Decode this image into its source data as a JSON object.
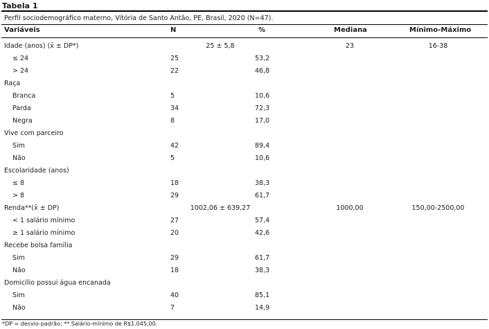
{
  "table_label": "Tabela 1",
  "caption": "Perfil sociodemográfico materno, Vitória de Santo Antão, PE, Brasil, 2020 (N=47).",
  "headers": {
    "variable": "Variáveis",
    "n": "N",
    "pct": "%",
    "median": "Mediana",
    "minmax": "Mínimo-Máximo"
  },
  "rows": [
    {
      "label": "Idade (anos) (x̄ ± DP*)",
      "indent": false,
      "span": "25 ± 5,8",
      "median": "23",
      "minmax": "16-38"
    },
    {
      "label": "≤ 24",
      "indent": true,
      "n": "25",
      "pct": "53,2"
    },
    {
      "label": "> 24",
      "indent": true,
      "n": "22",
      "pct": "46,8"
    },
    {
      "label": "Raça",
      "indent": false
    },
    {
      "label": "Branca",
      "indent": true,
      "n": "5",
      "pct": "10,6"
    },
    {
      "label": "Parda",
      "indent": true,
      "n": "34",
      "pct": "72,3"
    },
    {
      "label": "Negra",
      "indent": true,
      "n": "8",
      "pct": "17,0"
    },
    {
      "label": "Vive com parceiro",
      "indent": false
    },
    {
      "label": "Sim",
      "indent": true,
      "n": "42",
      "pct": "89,4"
    },
    {
      "label": "Não",
      "indent": true,
      "n": "5",
      "pct": "10,6"
    },
    {
      "label": "Escolaridade (anos)",
      "indent": false
    },
    {
      "label": "≤ 8",
      "indent": true,
      "n": "18",
      "pct": "38,3"
    },
    {
      "label": "> 8",
      "indent": true,
      "n": "29",
      "pct": "61,7"
    },
    {
      "label": "Renda**(x̄ ± DP)",
      "indent": false,
      "span": "1002,06 ± 639,27",
      "median": "1000,00",
      "minmax": "150,00-2500,00"
    },
    {
      "label": "< 1 salário mínimo",
      "indent": true,
      "n": "27",
      "pct": "57,4"
    },
    {
      "label": "≥ 1 salário mínimo",
      "indent": true,
      "n": "20",
      "pct": "42,6"
    },
    {
      "label": "Recebe bolsa família",
      "indent": false
    },
    {
      "label": "Sim",
      "indent": true,
      "n": "29",
      "pct": "61,7"
    },
    {
      "label": "Não",
      "indent": true,
      "n": "18",
      "pct": "38,3"
    },
    {
      "label": "Domicílio possui água encanada",
      "indent": false
    },
    {
      "label": "Sim",
      "indent": true,
      "n": "40",
      "pct": "85,1"
    },
    {
      "label": "Não",
      "indent": true,
      "n": "7",
      "pct": "14,9"
    }
  ],
  "footnote": "*DP = desvio-padrão; ** Salário-mínimo de R$1.045,00."
}
